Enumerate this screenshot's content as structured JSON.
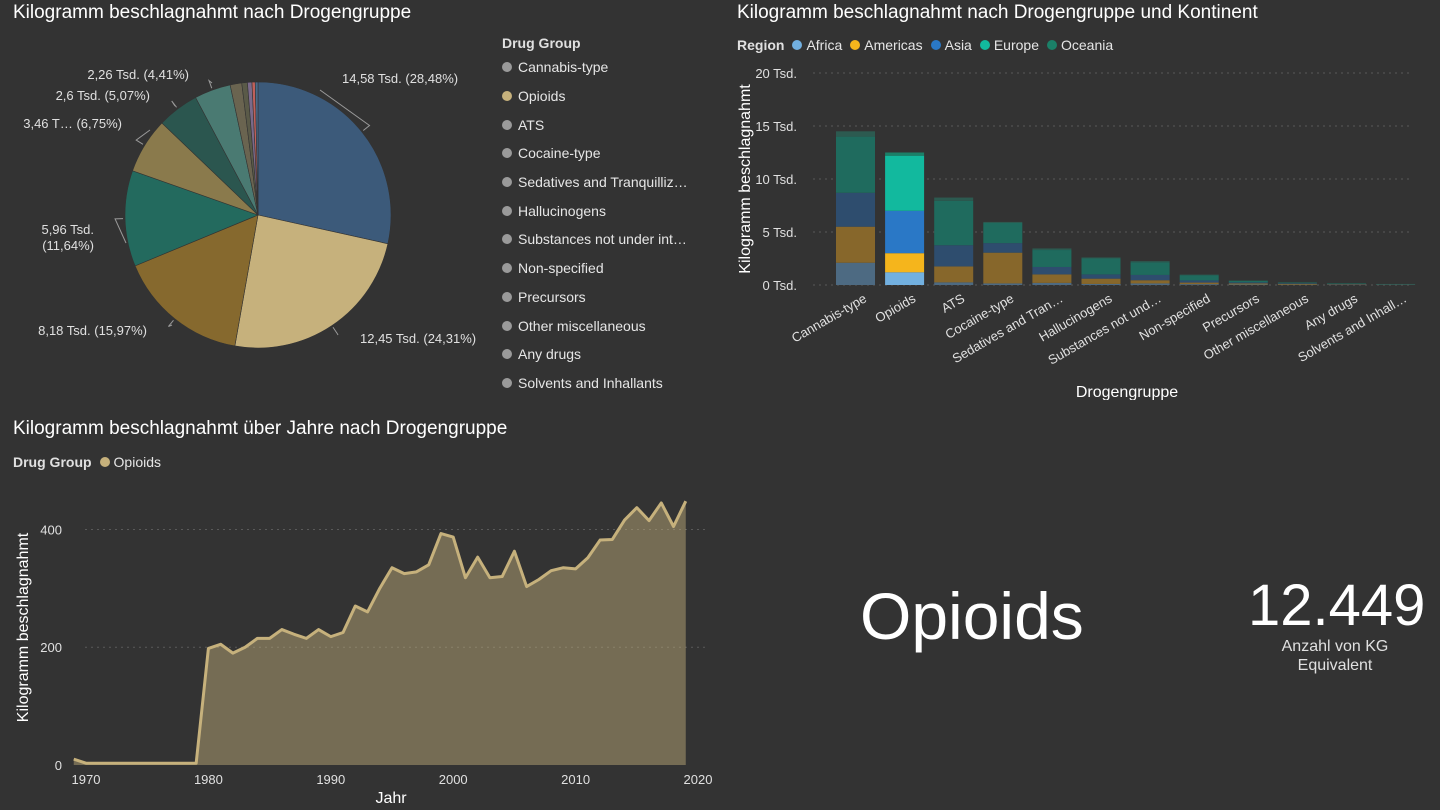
{
  "pie": {
    "title": "Kilogramm beschlagnahmt nach Drogengruppe",
    "legend_title": "Drug Group"
  },
  "bar": {
    "title": "Kilogramm beschlagnahmt nach Drogengruppe und Kontinent",
    "legend_title": "Region"
  },
  "line": {
    "title": "Kilogramm beschlagnahmt über Jahre nach Drogengruppe",
    "legend_title": "Drug Group"
  },
  "kpi": {
    "name": "Opioids",
    "value": "12.449",
    "label": "Anzahl von KG Equivalent"
  },
  "chart_data": [
    {
      "type": "pie",
      "title": "Kilogramm beschlagnahmt nach Drogengruppe",
      "legend_title": "Drug Group",
      "legend_position": "right",
      "slices": [
        {
          "name": "Cannabis-type",
          "value": 14.58,
          "percent": 28.48,
          "label": "14,58 Tsd. (28,48%)",
          "color": "#3C5A7A",
          "legend_color": "#9a9a9a"
        },
        {
          "name": "Opioids",
          "value": 12.45,
          "percent": 24.31,
          "label": "12,45 Tsd. (24,31%)",
          "color": "#C6B17C",
          "legend_color": "#C6B17C"
        },
        {
          "name": "ATS",
          "value": 8.18,
          "percent": 15.97,
          "label": "8,18 Tsd. (15,97%)",
          "color": "#86692E",
          "legend_color": "#9a9a9a"
        },
        {
          "name": "Cocaine-type",
          "value": 5.96,
          "percent": 11.64,
          "label_lines": [
            "5,96 Tsd.",
            "(11,64%)"
          ],
          "color": "#236A5E",
          "legend_color": "#9a9a9a"
        },
        {
          "name": "Sedatives and Tranquillizers",
          "legend_label": "Sedatives and Tranquilliz…",
          "value": 3.46,
          "percent": 6.75,
          "label": "3,46 T… (6,75%)",
          "color": "#8A7A4C",
          "legend_color": "#9a9a9a"
        },
        {
          "name": "Hallucinogens",
          "value": 2.6,
          "percent": 5.07,
          "label": "2,6 Tsd. (5,07%)",
          "color": "#2B564F",
          "legend_color": "#9a9a9a"
        },
        {
          "name": "Substances not under international control",
          "legend_label": "Substances not under int…",
          "value": 2.26,
          "percent": 4.41,
          "label": "2,26 Tsd. (4,41%)",
          "color": "#4A7A72",
          "legend_color": "#9a9a9a"
        },
        {
          "name": "Non-specified",
          "value": 0.72,
          "percent": 1.41,
          "color": "#6A6450",
          "legend_color": "#9a9a9a"
        },
        {
          "name": "Precursors",
          "value": 0.35,
          "percent": 0.68,
          "color": "#5A5A48",
          "legend_color": "#9a9a9a"
        },
        {
          "name": "Other miscellaneous",
          "value": 0.28,
          "percent": 0.55,
          "color": "#7A6A8A",
          "legend_color": "#9a9a9a"
        },
        {
          "name": "Any drugs",
          "value": 0.2,
          "percent": 0.39,
          "color": "#C0605A",
          "legend_color": "#9a9a9a"
        },
        {
          "name": "Solvents and Inhallants",
          "value": 0.17,
          "percent": 0.34,
          "color": "#4A6A8A",
          "legend_color": "#9a9a9a"
        }
      ]
    },
    {
      "type": "bar",
      "stacked": true,
      "title": "Kilogramm beschlagnahmt nach Drogengruppe und Kontinent",
      "xlabel": "Drogengruppe",
      "ylabel": "Kilogramm beschlagnahmt",
      "legend_title": "Region",
      "legend_position": "top-left",
      "ylim": [
        0,
        20000
      ],
      "yticks": [
        0,
        5000,
        10000,
        15000,
        20000
      ],
      "ytick_labels": [
        "0 Tsd.",
        "5 Tsd.",
        "10 Tsd.",
        "15 Tsd.",
        "20 Tsd."
      ],
      "grid": true,
      "categories": [
        "Cannabis-type",
        "Opioids",
        "ATS",
        "Cocaine-type",
        "Sedatives and Tran…",
        "Hallucinogens",
        "Substances not und…",
        "Non-specified",
        "Precursors",
        "Other miscellaneous",
        "Any drugs",
        "Solvents and Inhall…"
      ],
      "highlight_category": "Opioids",
      "series": [
        {
          "name": "Africa",
          "color": "#72B0E0",
          "dim_color": "#4D6A82",
          "values": [
            2100,
            1200,
            250,
            150,
            200,
            100,
            150,
            80,
            50,
            30,
            20,
            10
          ]
        },
        {
          "name": "Americas",
          "color": "#F5B51C",
          "dim_color": "#87672B",
          "values": [
            3400,
            1800,
            1500,
            2900,
            800,
            500,
            300,
            150,
            100,
            80,
            40,
            20
          ]
        },
        {
          "name": "Asia",
          "color": "#2A78C6",
          "dim_color": "#2E4D6E",
          "values": [
            3200,
            4000,
            2000,
            900,
            700,
            400,
            500,
            200,
            100,
            60,
            40,
            20
          ]
        },
        {
          "name": "Europe",
          "color": "#12B99E",
          "dim_color": "#1F6B5E",
          "values": [
            5300,
            5200,
            4200,
            1900,
            1600,
            1500,
            1200,
            500,
            150,
            60,
            50,
            40
          ]
        },
        {
          "name": "Oceania",
          "color": "#1B8068",
          "dim_color": "#2C5A50",
          "values": [
            500,
            300,
            300,
            100,
            150,
            100,
            100,
            50,
            30,
            20,
            10,
            10
          ]
        }
      ]
    },
    {
      "type": "area",
      "title": "Kilogramm beschlagnahmt über Jahre nach Drogengruppe",
      "xlabel": "Jahr",
      "ylabel": "Kilogramm beschlagnahmt",
      "legend_title": "Drug Group",
      "legend_position": "top-left",
      "xlim": [
        1970,
        2020
      ],
      "xticks": [
        1970,
        1980,
        1990,
        2000,
        2010,
        2020
      ],
      "ylim": [
        0,
        450
      ],
      "yticks": [
        0,
        200,
        400
      ],
      "grid": true,
      "series": [
        {
          "name": "Opioids",
          "color": "#C6B17C",
          "x": [
            1969,
            1970,
            1971,
            1972,
            1973,
            1974,
            1975,
            1976,
            1977,
            1978,
            1979,
            1980,
            1981,
            1982,
            1983,
            1984,
            1985,
            1986,
            1987,
            1988,
            1989,
            1990,
            1991,
            1992,
            1993,
            1994,
            1995,
            1996,
            1997,
            1998,
            1999,
            2000,
            2001,
            2002,
            2003,
            2004,
            2005,
            2006,
            2007,
            2008,
            2009,
            2010,
            2011,
            2012,
            2013,
            2014,
            2015,
            2016,
            2017,
            2018,
            2019
          ],
          "values": [
            10,
            3,
            3,
            3,
            3,
            3,
            3,
            3,
            3,
            3,
            3,
            198,
            205,
            190,
            200,
            215,
            215,
            230,
            222,
            215,
            230,
            218,
            225,
            270,
            260,
            300,
            335,
            325,
            328,
            340,
            393,
            387,
            318,
            353,
            318,
            320,
            363,
            303,
            315,
            330,
            335,
            333,
            352,
            382,
            383,
            416,
            437,
            415,
            445,
            405,
            448
          ]
        }
      ]
    }
  ]
}
